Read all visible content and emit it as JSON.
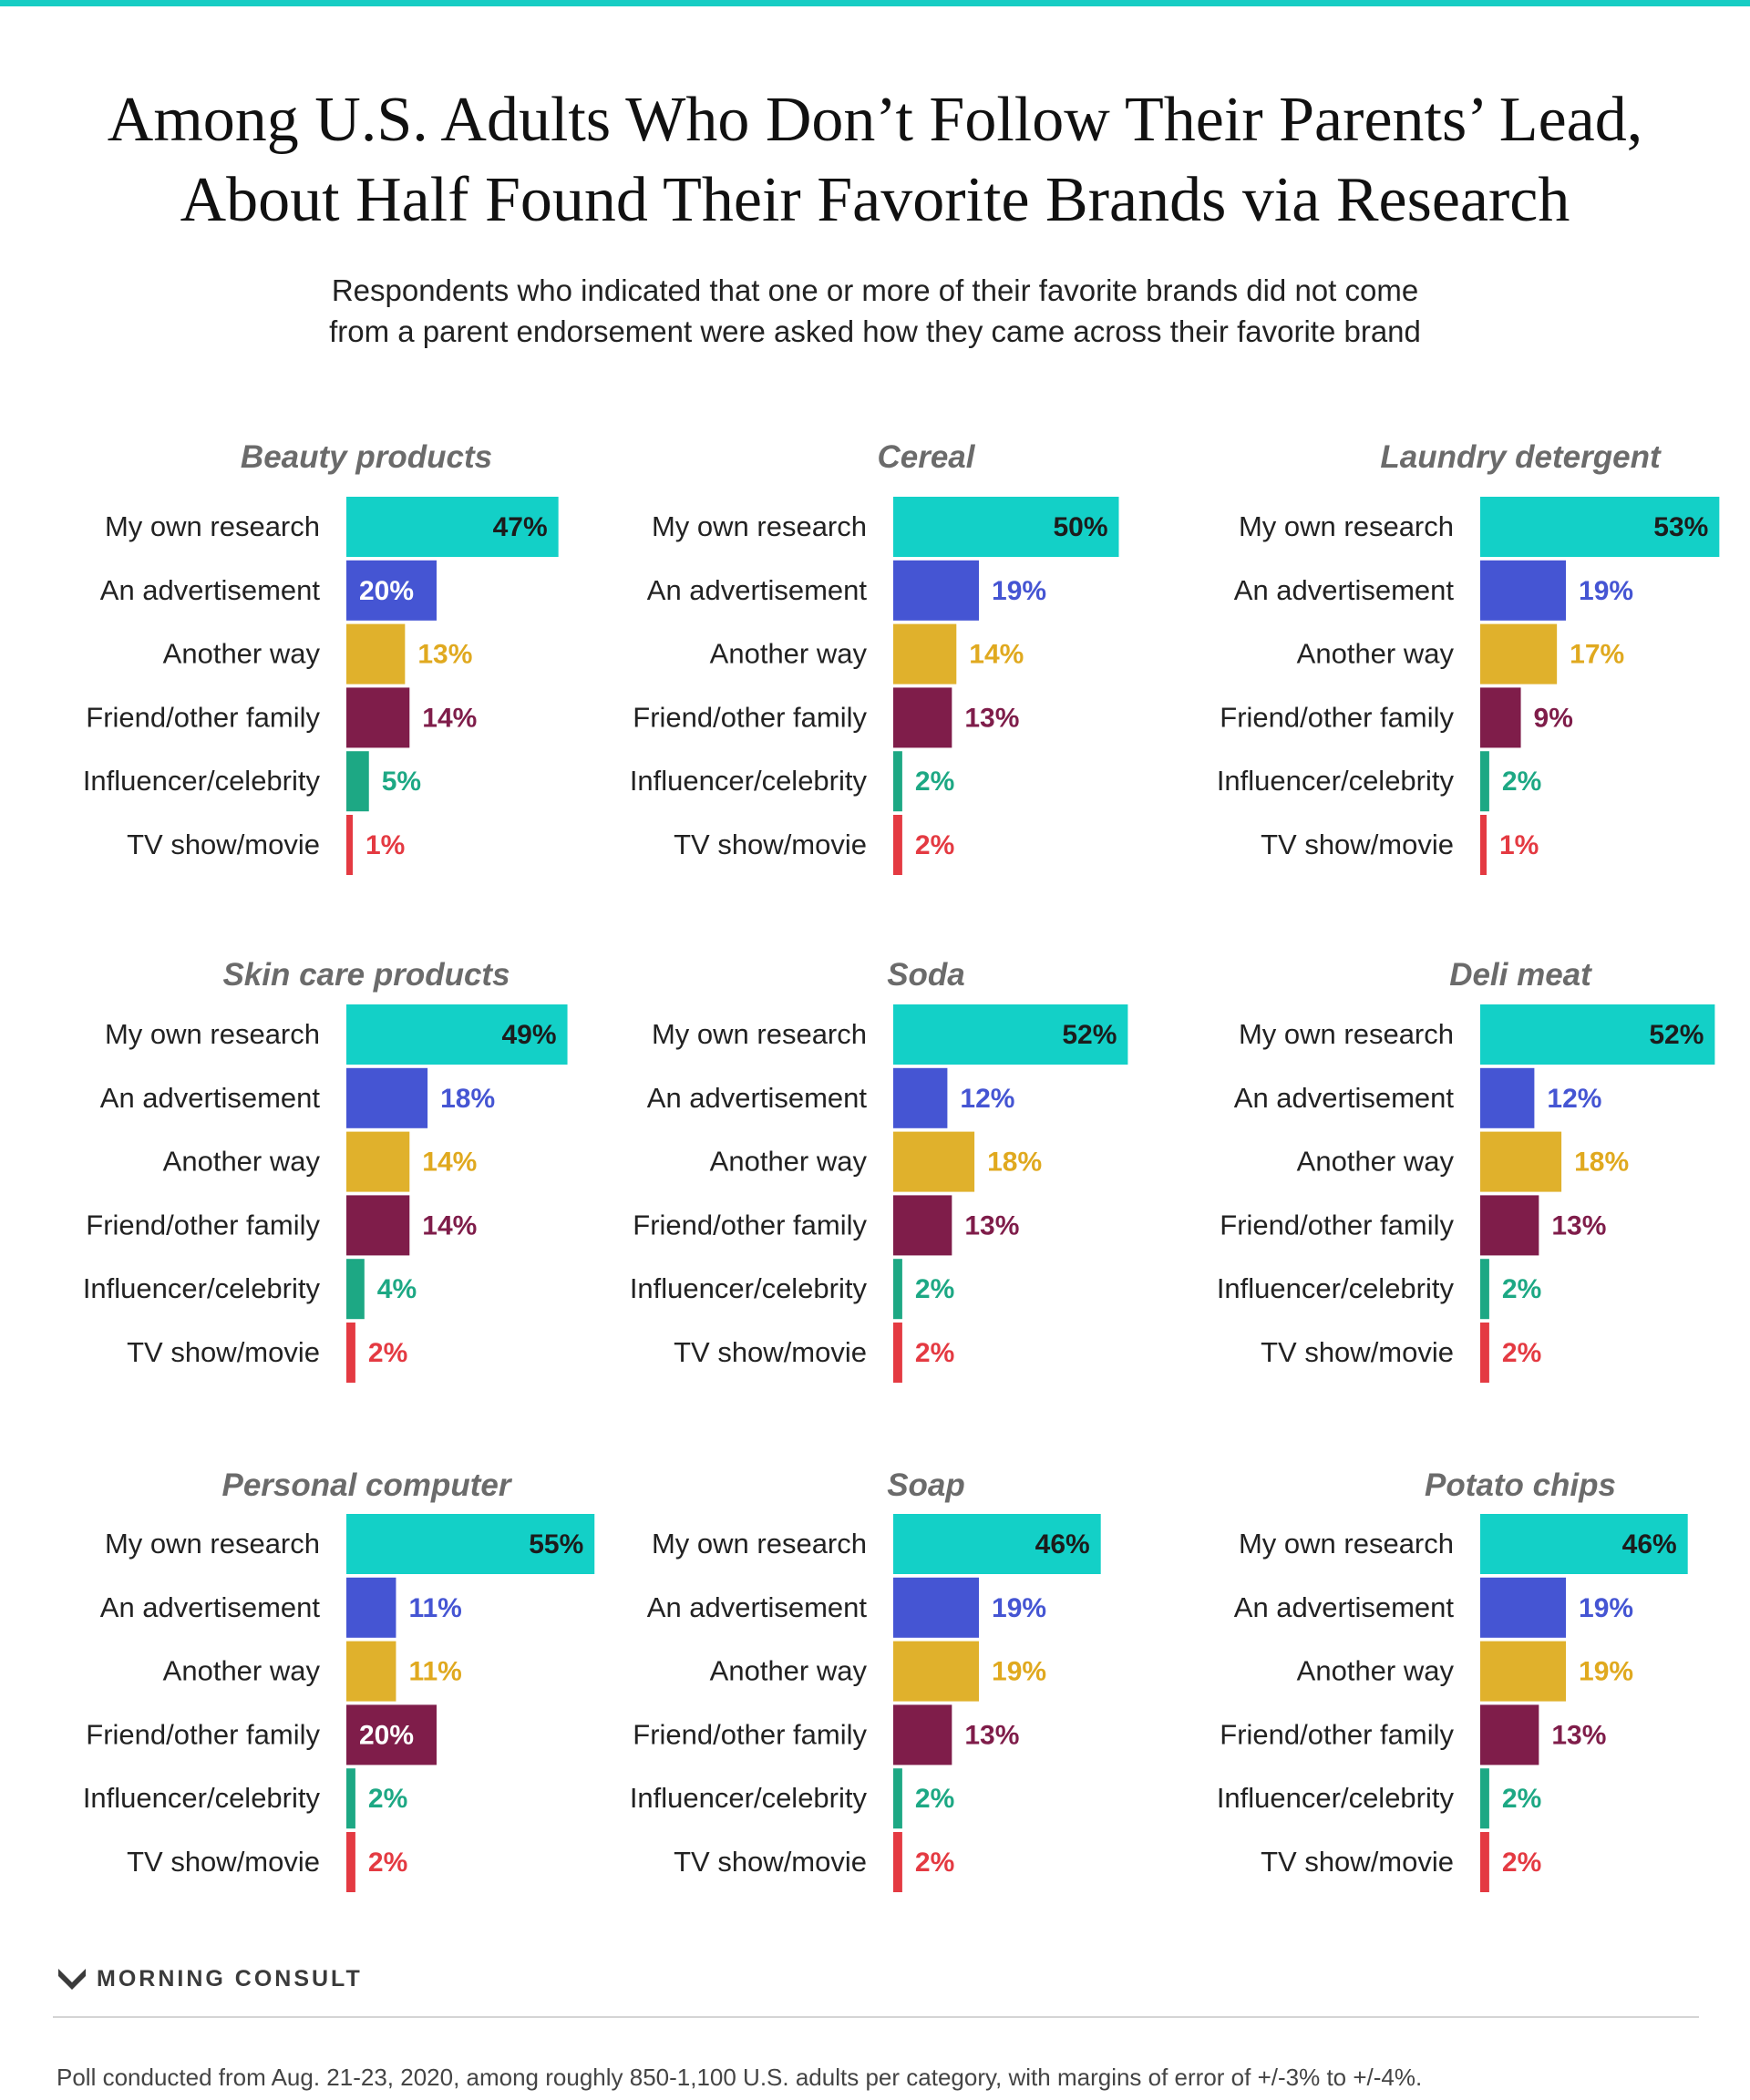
{
  "colors": {
    "accent_rule": "#17cdc4",
    "research": "#13d0c7",
    "advertisement": "#4555d3",
    "another_way": "#e0b12c",
    "friend_family": "#7f1d4a",
    "influencer": "#1da884",
    "tv": "#e43a42",
    "chart_title": "#6b6b6b"
  },
  "header": {
    "title_line1": "Among U.S. Adults Who Don’t Follow Their Parents’ Lead,",
    "title_line2": "About Half Found Their Favorite Brands via Research",
    "subtitle_line1": "Respondents who indicated that one or more of their favorite brands did not come",
    "subtitle_line2": "from a parent endorsement were asked how they came across their favorite brand"
  },
  "chart_data": [
    {
      "type": "bar",
      "title": "Beauty products",
      "categories": [
        "My own research",
        "An advertisement",
        "Another way",
        "Friend/other family",
        "Influencer/celebrity",
        "TV show/movie"
      ],
      "values": [
        47,
        20,
        13,
        14,
        5,
        1
      ],
      "value_labels": [
        "47%",
        "20%",
        "13%",
        "14%",
        "5%",
        "1%"
      ]
    },
    {
      "type": "bar",
      "title": "Cereal",
      "categories": [
        "My own research",
        "An advertisement",
        "Another way",
        "Friend/other family",
        "Influencer/celebrity",
        "TV show/movie"
      ],
      "values": [
        50,
        19,
        14,
        13,
        2,
        2
      ],
      "value_labels": [
        "50%",
        "19%",
        "14%",
        "13%",
        "2%",
        "2%"
      ]
    },
    {
      "type": "bar",
      "title": "Laundry detergent",
      "categories": [
        "My own research",
        "An advertisement",
        "Another way",
        "Friend/other family",
        "Influencer/celebrity",
        "TV show/movie"
      ],
      "values": [
        53,
        19,
        17,
        9,
        2,
        1
      ],
      "value_labels": [
        "53%",
        "19%",
        "17%",
        "9%",
        "2%",
        "1%"
      ]
    },
    {
      "type": "bar",
      "title": "Skin care products",
      "categories": [
        "My own research",
        "An advertisement",
        "Another way",
        "Friend/other family",
        "Influencer/celebrity",
        "TV show/movie"
      ],
      "values": [
        49,
        18,
        14,
        14,
        4,
        2
      ],
      "value_labels": [
        "49%",
        "18%",
        "14%",
        "14%",
        "4%",
        "2%"
      ]
    },
    {
      "type": "bar",
      "title": "Soda",
      "categories": [
        "My own research",
        "An advertisement",
        "Another way",
        "Friend/other family",
        "Influencer/celebrity",
        "TV show/movie"
      ],
      "values": [
        52,
        12,
        18,
        13,
        2,
        2
      ],
      "value_labels": [
        "52%",
        "12%",
        "18%",
        "13%",
        "2%",
        "2%"
      ]
    },
    {
      "type": "bar",
      "title": "Deli meat",
      "categories": [
        "My own research",
        "An advertisement",
        "Another way",
        "Friend/other family",
        "Influencer/celebrity",
        "TV show/movie"
      ],
      "values": [
        52,
        12,
        18,
        13,
        2,
        2
      ],
      "value_labels": [
        "52%",
        "12%",
        "18%",
        "13%",
        "2%",
        "2%"
      ]
    },
    {
      "type": "bar",
      "title": "Personal computer",
      "categories": [
        "My own research",
        "An advertisement",
        "Another way",
        "Friend/other family",
        "Influencer/celebrity",
        "TV show/movie"
      ],
      "values": [
        55,
        11,
        11,
        20,
        2,
        2
      ],
      "value_labels": [
        "55%",
        "11%",
        "11%",
        "20%",
        "2%",
        "2%"
      ]
    },
    {
      "type": "bar",
      "title": "Soap",
      "categories": [
        "My own research",
        "An advertisement",
        "Another way",
        "Friend/other family",
        "Influencer/celebrity",
        "TV show/movie"
      ],
      "values": [
        46,
        19,
        19,
        13,
        2,
        2
      ],
      "value_labels": [
        "46%",
        "19%",
        "19%",
        "13%",
        "2%",
        "2%"
      ]
    },
    {
      "type": "bar",
      "title": "Potato chips",
      "categories": [
        "My own research",
        "An advertisement",
        "Another way",
        "Friend/other family",
        "Influencer/celebrity",
        "TV show/movie"
      ],
      "values": [
        46,
        19,
        19,
        13,
        2,
        2
      ],
      "value_labels": [
        "46%",
        "19%",
        "19%",
        "13%",
        "2%",
        "2%"
      ]
    }
  ],
  "footer": {
    "brand": "MORNING CONSULT",
    "note": "Poll conducted from Aug. 21-23, 2020, among roughly 850-1,100 U.S. adults per category, with margins of error of +/-3% to +/-4%."
  }
}
